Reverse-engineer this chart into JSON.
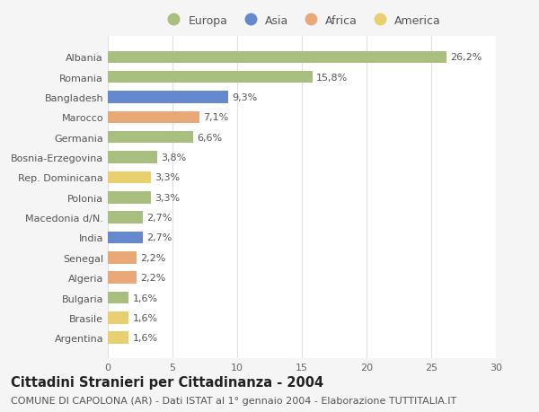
{
  "categories": [
    "Albania",
    "Romania",
    "Bangladesh",
    "Marocco",
    "Germania",
    "Bosnia-Erzegovina",
    "Rep. Dominicana",
    "Polonia",
    "Macedonia d/N.",
    "India",
    "Senegal",
    "Algeria",
    "Bulgaria",
    "Brasile",
    "Argentina"
  ],
  "values": [
    26.2,
    15.8,
    9.3,
    7.1,
    6.6,
    3.8,
    3.3,
    3.3,
    2.7,
    2.7,
    2.2,
    2.2,
    1.6,
    1.6,
    1.6
  ],
  "labels": [
    "26,2%",
    "15,8%",
    "9,3%",
    "7,1%",
    "6,6%",
    "3,8%",
    "3,3%",
    "3,3%",
    "2,7%",
    "2,7%",
    "2,2%",
    "2,2%",
    "1,6%",
    "1,6%",
    "1,6%"
  ],
  "colors": [
    "#a8bf80",
    "#a8bf80",
    "#6688cc",
    "#e8a878",
    "#a8bf80",
    "#a8bf80",
    "#e8d070",
    "#a8bf80",
    "#a8bf80",
    "#6688cc",
    "#e8a878",
    "#e8a878",
    "#a8bf80",
    "#e8d070",
    "#e8d070"
  ],
  "continent_labels": [
    "Europa",
    "Asia",
    "Africa",
    "America"
  ],
  "continent_colors": [
    "#a8bf80",
    "#6688cc",
    "#e8a878",
    "#e8d070"
  ],
  "title": "Cittadini Stranieri per Cittadinanza - 2004",
  "subtitle": "COMUNE DI CAPOLONA (AR) - Dati ISTAT al 1° gennaio 2004 - Elaborazione TUTTITALIA.IT",
  "xlim": [
    0,
    30
  ],
  "xticks": [
    0,
    5,
    10,
    15,
    20,
    25,
    30
  ],
  "background_color": "#f5f5f5",
  "plot_bg_color": "#ffffff",
  "grid_color": "#e0e0e0",
  "bar_height": 0.6,
  "title_fontsize": 10.5,
  "subtitle_fontsize": 8,
  "label_fontsize": 8,
  "tick_fontsize": 8,
  "legend_fontsize": 9
}
